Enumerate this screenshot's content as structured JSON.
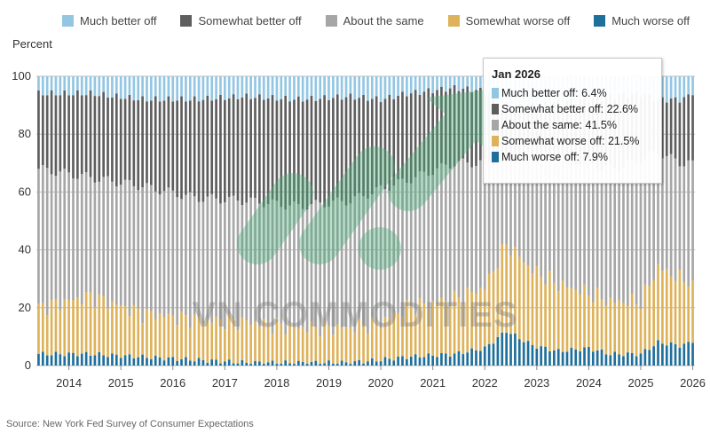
{
  "legend": {
    "items": [
      {
        "label": "Much better off",
        "color": "#93c6e3"
      },
      {
        "label": "Somewhat better off",
        "color": "#5e5e5e"
      },
      {
        "label": "About the same",
        "color": "#a6a6a6"
      },
      {
        "label": "Somewhat worse off",
        "color": "#ddb25a"
      },
      {
        "label": "Much worse off",
        "color": "#1f6f9b"
      }
    ]
  },
  "y_axis_title": "Percent",
  "source": "Source: New York Fed Survey of Consumer Expectations",
  "watermark_text": "VN COMMODITIES",
  "tooltip": {
    "title": "Jan 2026",
    "rows": [
      {
        "text": "Much better off: 6.4%",
        "color": "#93c6e3"
      },
      {
        "text": "Somewhat better off: 22.6%",
        "color": "#5e5e5e"
      },
      {
        "text": "About the same: 41.5%",
        "color": "#a6a6a6"
      },
      {
        "text": "Somewhat worse off: 21.5%",
        "color": "#ddb25a"
      },
      {
        "text": "Much worse off: 7.9%",
        "color": "#1f6f9b"
      }
    ]
  },
  "chart_data": {
    "type": "bar",
    "stacked": true,
    "x_start": "2013-06",
    "x_end": "2026-01",
    "x_tick_labels": [
      "2014",
      "2015",
      "2016",
      "2017",
      "2018",
      "2019",
      "2020",
      "2021",
      "2022",
      "2023",
      "2024",
      "2025",
      "2026"
    ],
    "ylabel": "Percent",
    "ylim": [
      0,
      100
    ],
    "y_ticks": [
      0,
      20,
      40,
      60,
      80,
      100
    ],
    "grid": true,
    "stack_order": [
      "Much worse off",
      "Somewhat worse off",
      "About the same",
      "Somewhat better off",
      "Much better off"
    ],
    "anchors": {
      "dates": [
        "2013-06",
        "2014-06",
        "2015-06",
        "2016-06",
        "2017-06",
        "2018-06",
        "2019-06",
        "2020-01",
        "2020-07",
        "2021-06",
        "2022-01",
        "2022-06",
        "2022-12",
        "2023-06",
        "2024-01",
        "2024-06",
        "2025-01",
        "2025-05",
        "2025-10",
        "2026-01"
      ],
      "much_worse": [
        4,
        4,
        3,
        2,
        1,
        1,
        1,
        2,
        3,
        4,
        6,
        12,
        7,
        5,
        6,
        4,
        4,
        8,
        7,
        7.9
      ],
      "worse_top": [
        20,
        24,
        18,
        16,
        15,
        13,
        13,
        15,
        20,
        23,
        27,
        42,
        33,
        28,
        25,
        22,
        22,
        34,
        30,
        29.4
      ],
      "same_top": [
        68,
        65,
        62,
        58,
        57,
        55,
        57,
        61,
        64,
        70,
        70,
        72,
        73,
        72,
        70,
        68,
        71,
        74,
        70,
        70.9
      ],
      "somewhat_top": [
        94,
        94,
        92,
        92,
        93,
        92,
        93,
        92,
        94,
        96,
        95,
        89,
        90,
        91,
        92,
        93,
        94,
        92,
        92,
        93.6
      ]
    },
    "series_latest": [
      {
        "name": "Much better off",
        "value": 6.4
      },
      {
        "name": "Somewhat better off",
        "value": 22.6
      },
      {
        "name": "About the same",
        "value": 41.5
      },
      {
        "name": "Somewhat worse off",
        "value": 21.5
      },
      {
        "name": "Much worse off",
        "value": 7.9
      }
    ]
  }
}
